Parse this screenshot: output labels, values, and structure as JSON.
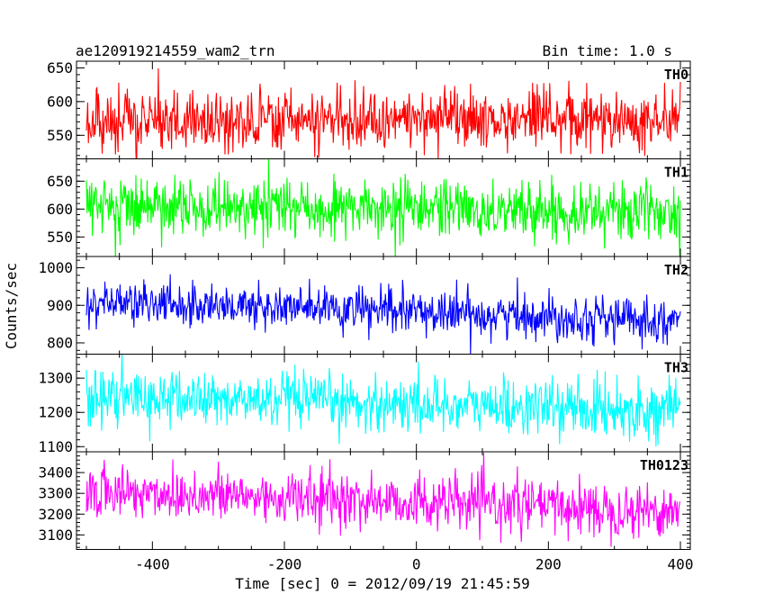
{
  "header": {
    "title": "ae120919214559_wam2_trn",
    "bin_time": "Bin time: 1.0 s"
  },
  "chart_data": {
    "type": "line",
    "xlabel": "Time [sec] 0 = 2012/09/19 21:45:59",
    "ylabel": "Counts/sec",
    "xlim": [
      -515,
      415
    ],
    "x_ticks": [
      "-400",
      "-200",
      "0",
      "200",
      "400"
    ],
    "x_tick_values": [
      -400,
      -200,
      0,
      200,
      400
    ],
    "x_range": [
      -500,
      400
    ],
    "grid": false,
    "panels": [
      {
        "name": "TH0",
        "color": "#ff0000",
        "ylim": [
          515,
          660
        ],
        "yticks": [
          550,
          600,
          650
        ],
        "ytick_labels": [
          "550",
          "600",
          "650"
        ],
        "mean_start": 572,
        "mean_end": 572,
        "spread": 22
      },
      {
        "name": "TH1",
        "color": "#00ff00",
        "ylim": [
          515,
          690
        ],
        "yticks": [
          550,
          600,
          650
        ],
        "ytick_labels": [
          "550",
          "600",
          "650"
        ],
        "mean_start": 605,
        "mean_end": 595,
        "spread": 25
      },
      {
        "name": "TH2",
        "color": "#0000ff",
        "ylim": [
          770,
          1030
        ],
        "yticks": [
          800,
          900,
          1000
        ],
        "ytick_labels": [
          "800",
          "900",
          "1000"
        ],
        "mean_start": 910,
        "mean_end": 860,
        "spread": 30
      },
      {
        "name": "TH3",
        "color": "#00ffff",
        "ylim": [
          1085,
          1370
        ],
        "yticks": [
          1100,
          1200,
          1300
        ],
        "ytick_labels": [
          "1100",
          "1200",
          "1300"
        ],
        "mean_start": 1245,
        "mean_end": 1205,
        "spread": 40
      },
      {
        "name": "TH0123",
        "color": "#ff00ff",
        "ylim": [
          3030,
          3500
        ],
        "yticks": [
          3100,
          3200,
          3300,
          3400
        ],
        "ytick_labels": [
          "3100",
          "3200",
          "3300",
          "3400"
        ],
        "mean_start": 3310,
        "mean_end": 3215,
        "spread": 65
      }
    ]
  }
}
